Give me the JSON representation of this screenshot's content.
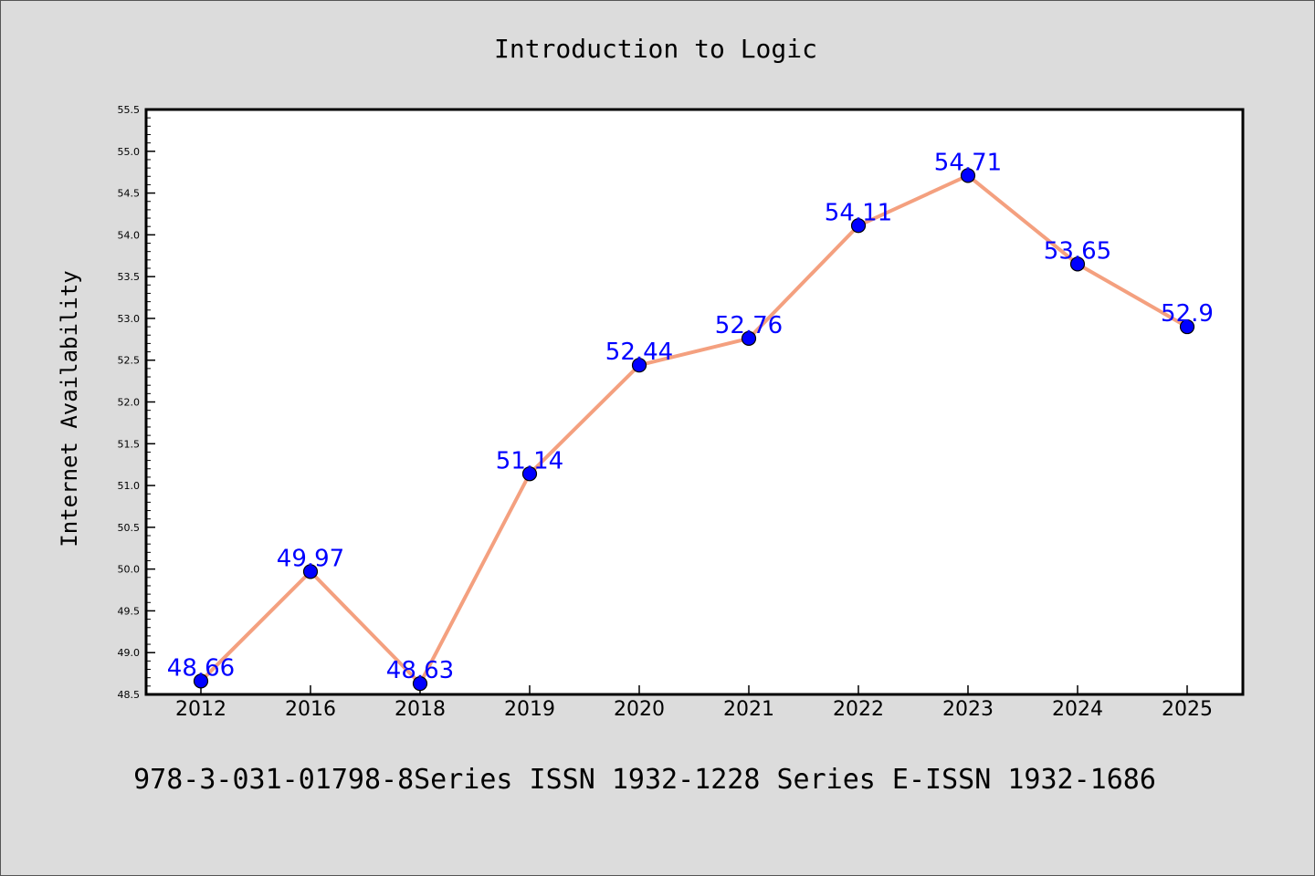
{
  "chart_data": {
    "type": "line",
    "title": "Introduction to Logic",
    "xlabel": "",
    "ylabel": "Internet Availability",
    "footer": "978-3-031-01798-8Series ISSN 1932-1228 Series E-ISSN 1932-1686",
    "categories": [
      "2012",
      "2016",
      "2018",
      "2019",
      "2020",
      "2021",
      "2022",
      "2023",
      "2024",
      "2025"
    ],
    "series": [
      {
        "values": [
          48.66,
          49.97,
          48.63,
          51.14,
          52.44,
          52.76,
          54.11,
          54.71,
          53.65,
          52.9
        ]
      }
    ],
    "data_labels": [
      "48.66",
      "49.97",
      "48.63",
      "51.14",
      "52.44",
      "52.76",
      "54.11",
      "54.71",
      "53.65",
      "52.9"
    ],
    "ylim": [
      48.5,
      55.5
    ],
    "yticks": [
      "48.5",
      "49.0",
      "49.5",
      "50.0",
      "50.5",
      "51.0",
      "51.5",
      "52.0",
      "52.5",
      "53.0",
      "53.5",
      "54.0",
      "54.5",
      "55.0",
      "55.5"
    ],
    "grid": false,
    "colors": {
      "line": "#f4a07f",
      "marker": "#0000ff",
      "label": "#0000ff",
      "background": "#dcdcdc",
      "plot": "#ffffff"
    }
  }
}
